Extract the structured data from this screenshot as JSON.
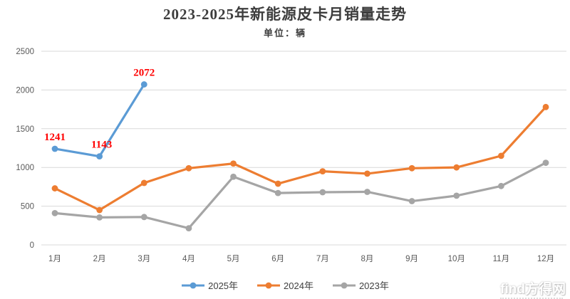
{
  "chart": {
    "title": "2023-2025年新能源皮卡月销量走势",
    "subtitle": "单位：辆"
  },
  "chart_data": {
    "type": "line",
    "categories": [
      "1月",
      "2月",
      "3月",
      "4月",
      "5月",
      "6月",
      "7月",
      "8月",
      "9月",
      "10月",
      "11月",
      "12月"
    ],
    "series": [
      {
        "name": "2025年",
        "color": "#5B9BD5",
        "values": [
          1241,
          1143,
          2072
        ],
        "point_labels": [
          "1241",
          "1143",
          "2072"
        ]
      },
      {
        "name": "2024年",
        "color": "#ED7D31",
        "values": [
          730,
          450,
          800,
          990,
          1050,
          790,
          950,
          920,
          990,
          1000,
          1150,
          1780
        ],
        "point_labels": []
      },
      {
        "name": "2023年",
        "color": "#A5A5A5",
        "values": [
          410,
          355,
          360,
          215,
          880,
          670,
          680,
          685,
          565,
          635,
          760,
          1060
        ],
        "point_labels": []
      }
    ],
    "title": "2023-2025年新能源皮卡月销量走势",
    "subtitle": "单位：辆",
    "xlabel": "",
    "ylabel": "",
    "ylim": [
      0,
      2500
    ],
    "yticks": [
      0,
      500,
      1000,
      1500,
      2000,
      2500
    ],
    "grid": true,
    "gridline_color": "#D9D9D9",
    "tick_label_color": "#595959",
    "data_label_color": "#FF0000",
    "legend_position": "bottom"
  },
  "watermark": {
    "text": "find方得网"
  }
}
